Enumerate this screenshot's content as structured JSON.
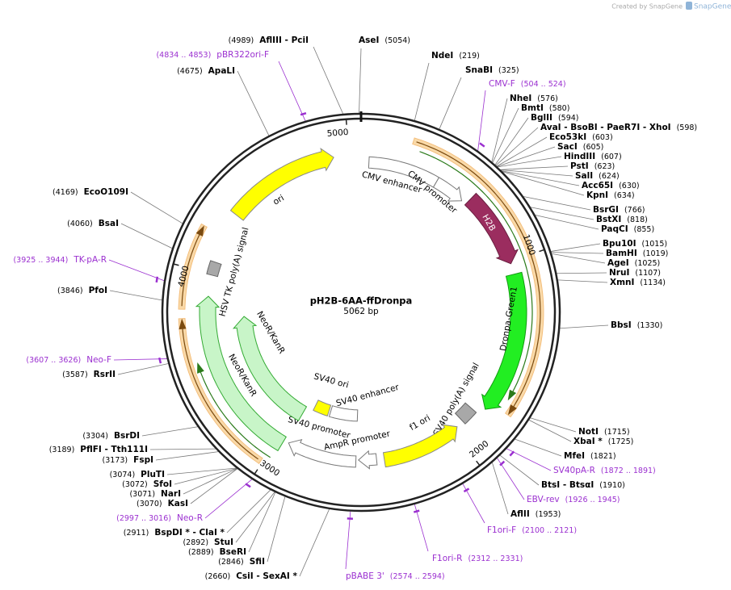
{
  "watermark": "Created by SnapGene",
  "plasmid": {
    "name": "pH2B-6AA-ffDronpa",
    "size": "5062 bp"
  },
  "ticks": [
    1000,
    2000,
    3000,
    4000,
    5000
  ],
  "sites": [
    {
      "name": "AseI",
      "position": "(5054)"
    },
    {
      "name": "NdeI",
      "position": "(219)"
    },
    {
      "name": "SnaBI",
      "position": "(325)"
    },
    {
      "name": "NheI",
      "position": "(576)"
    },
    {
      "name": "BmtI",
      "position": "(580)"
    },
    {
      "name": "BglII",
      "position": "(594)"
    },
    {
      "name": "AvaI  - BsoBI  - PaeR7I  - XhoI",
      "position": "(598)"
    },
    {
      "name": "Eco53kI",
      "position": "(603)"
    },
    {
      "name": "SacI",
      "position": "(605)"
    },
    {
      "name": "HindIII",
      "position": "(607)"
    },
    {
      "name": "PstI",
      "position": "(623)"
    },
    {
      "name": "SalI",
      "position": "(624)"
    },
    {
      "name": "Acc65I",
      "position": "(630)"
    },
    {
      "name": "KpnI",
      "position": "(634)"
    },
    {
      "name": "BsrGI",
      "position": "(766)"
    },
    {
      "name": "BstXI",
      "position": "(818)"
    },
    {
      "name": "PaqCI",
      "position": "(855)"
    },
    {
      "name": "Bpu10I",
      "position": "(1015)"
    },
    {
      "name": "BamHI",
      "position": "(1019)"
    },
    {
      "name": "AgeI",
      "position": "(1025)"
    },
    {
      "name": "NruI",
      "position": "(1107)"
    },
    {
      "name": "XmnI",
      "position": "(1134)"
    },
    {
      "name": "BbsI",
      "position": "(1330)"
    },
    {
      "name": "NotI",
      "position": "(1715)"
    },
    {
      "name": "XbaI *",
      "position": "(1725)"
    },
    {
      "name": "MfeI",
      "position": "(1821)"
    },
    {
      "name": "BtsI  - BtsαI",
      "position": "(1910)"
    },
    {
      "name": "AflII",
      "position": "(1953)"
    },
    {
      "name": "AflIII  - PciI",
      "position": "(4989)"
    },
    {
      "name": "ApaLI",
      "position": "(4675)"
    },
    {
      "name": "EcoO109I",
      "position": "(4169)"
    },
    {
      "name": "BsaI",
      "position": "(4060)"
    },
    {
      "name": "PfoI",
      "position": "(3846)"
    },
    {
      "name": "RsrII",
      "position": "(3587)"
    },
    {
      "name": "BsrDI",
      "position": "(3304)"
    },
    {
      "name": "PflFI  - Tth111I",
      "position": "(3189)"
    },
    {
      "name": "FspI",
      "position": "(3173)"
    },
    {
      "name": "PluTI",
      "position": "(3074)"
    },
    {
      "name": "SfoI",
      "position": "(3072)"
    },
    {
      "name": "NarI",
      "position": "(3071)"
    },
    {
      "name": "KasI",
      "position": "(3070)"
    },
    {
      "name": "BspDI *  - ClaI *",
      "position": "(2911)"
    },
    {
      "name": "StuI",
      "position": "(2892)"
    },
    {
      "name": "BseRI",
      "position": "(2889)"
    },
    {
      "name": "SfiI",
      "position": "(2846)"
    },
    {
      "name": "CsiI  - SexAI *",
      "position": "(2660)"
    }
  ],
  "primers": [
    {
      "name": "CMV-F",
      "range": "(504 .. 524)"
    },
    {
      "name": "SV40pA-R",
      "range": "(1872 .. 1891)"
    },
    {
      "name": "EBV-rev",
      "range": "(1926 .. 1945)"
    },
    {
      "name": "F1ori-F",
      "range": "(2100 .. 2121)"
    },
    {
      "name": "F1ori-R",
      "range": "(2312 .. 2331)"
    },
    {
      "name": "pBABE 3'",
      "range": "(2574 .. 2594)"
    },
    {
      "name": "pBR322ori-F",
      "range": "(4834 .. 4853)"
    },
    {
      "name": "TK-pA-R",
      "range": "(3925 .. 3944)"
    },
    {
      "name": "Neo-F",
      "range": "(3607 .. 3626)"
    },
    {
      "name": "Neo-R",
      "range": "(2997 .. 3016)"
    }
  ],
  "features": [
    {
      "label": "ori"
    },
    {
      "label": "CMV enhancer"
    },
    {
      "label": "CMV promoter"
    },
    {
      "label": "H2B"
    },
    {
      "label": "Dronpa-Green1"
    },
    {
      "label": "SV40 poly(A) signal"
    },
    {
      "label": "f1 ori"
    },
    {
      "label": "AmpR promoter"
    },
    {
      "label": "SV40 promoter"
    },
    {
      "label": "SV40 ori"
    },
    {
      "label": "SV40 enhancer"
    },
    {
      "label": "NeoR/KanR"
    },
    {
      "label": "NeoR/KanR"
    },
    {
      "label": "HSV TK poly(A) signal"
    }
  ]
}
